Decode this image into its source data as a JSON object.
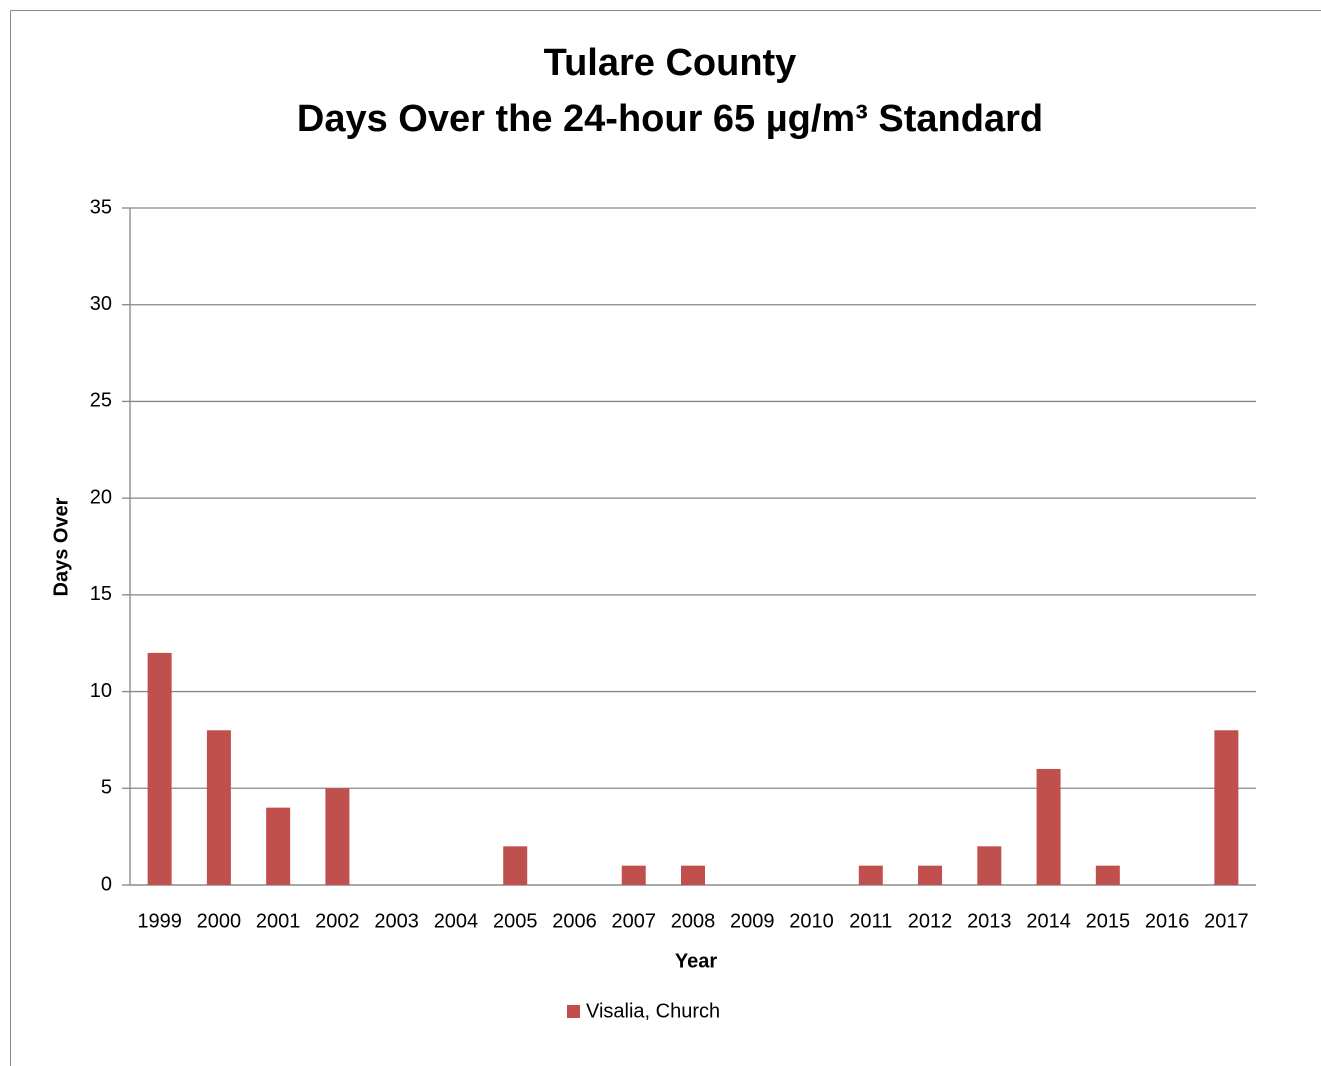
{
  "chart_data": {
    "type": "bar",
    "title": "Tulare County",
    "subtitle": "Days Over the 24-hour 65 µg/m³ Standard",
    "x_label": "Year",
    "y_label": "Days Over",
    "categories": [
      "1999",
      "2000",
      "2001",
      "2002",
      "2003",
      "2004",
      "2005",
      "2006",
      "2007",
      "2008",
      "2009",
      "2010",
      "2011",
      "2012",
      "2013",
      "2014",
      "2015",
      "2016",
      "2017"
    ],
    "series": [
      {
        "name": "Visalia, Church",
        "color": "#c0504d",
        "values": [
          12,
          8,
          4,
          5,
          0,
          0,
          2,
          0,
          1,
          1,
          0,
          0,
          1,
          1,
          2,
          6,
          1,
          0,
          8
        ]
      }
    ],
    "ylim": [
      0,
      35
    ],
    "yticks": [
      0,
      5,
      10,
      15,
      20,
      25,
      30,
      35
    ],
    "grid": true,
    "legend": "bottom"
  }
}
